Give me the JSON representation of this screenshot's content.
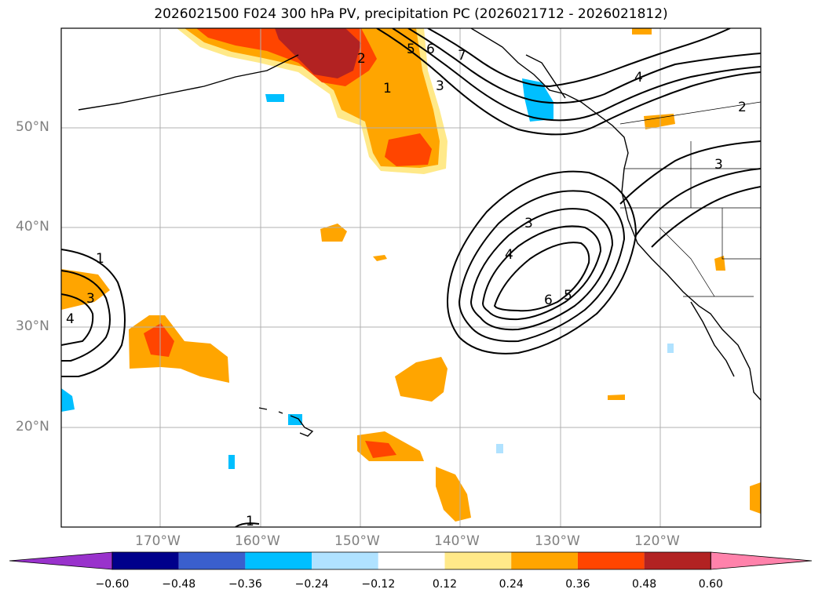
{
  "title": "2026021500 F024 300 hPa PV, precipitation PC (2026021712 - 2026021812)",
  "latitudes": [
    {
      "label": "50°N",
      "value": 50
    },
    {
      "label": "40°N",
      "value": 40
    },
    {
      "label": "30°N",
      "value": 30
    },
    {
      "label": "20°N",
      "value": 20
    }
  ],
  "longitudes": [
    {
      "label": "170°W",
      "value": -170
    },
    {
      "label": "160°W",
      "value": -160
    },
    {
      "label": "150°W",
      "value": -150
    },
    {
      "label": "140°W",
      "value": -140
    },
    {
      "label": "130°W",
      "value": -130
    },
    {
      "label": "120°W",
      "value": -120
    }
  ],
  "colorbar": {
    "ticks": [
      "−0.60",
      "−0.48",
      "−0.36",
      "−0.24",
      "−0.12",
      "0.12",
      "0.24",
      "0.36",
      "0.48",
      "0.60"
    ],
    "colors": [
      "#9932cc",
      "#00008b",
      "#3a5fcd",
      "#00bfff",
      "#b0e2ff",
      "#ffffff",
      "#ffe989",
      "#ffa500",
      "#ff4500",
      "#b22222",
      "#ff82ab"
    ]
  },
  "contour_labels": [
    "1",
    "2",
    "3",
    "4",
    "5",
    "6",
    "7"
  ]
}
